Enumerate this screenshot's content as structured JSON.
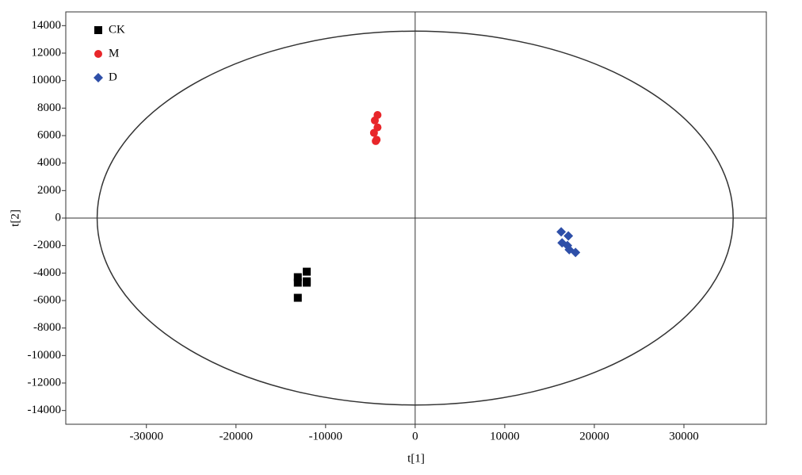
{
  "chart_data": {
    "type": "scatter",
    "xlabel": "t[1]",
    "ylabel": "t[2]",
    "xlim": [
      -39000,
      39200
    ],
    "ylim": [
      -15000,
      15000
    ],
    "xticks": [
      -30000,
      -20000,
      -10000,
      0,
      10000,
      20000,
      30000
    ],
    "yticks": [
      -14000,
      -12000,
      -10000,
      -8000,
      -6000,
      -4000,
      -2000,
      0,
      2000,
      4000,
      6000,
      8000,
      10000,
      12000,
      14000
    ],
    "ellipse": {
      "rx": 35500,
      "ry": 13600
    },
    "legend": "upper left",
    "series": [
      {
        "name": "CK",
        "color": "#000000",
        "marker": "square",
        "x": [
          -12100,
          -13100,
          -12100,
          -13100,
          -12100,
          -13100
        ],
        "values": [
          -3900,
          -4300,
          -4600,
          -4700,
          -4700,
          -5800
        ]
      },
      {
        "name": "M",
        "color": "#e8262a",
        "marker": "circle",
        "x": [
          -4200,
          -4500,
          -4200,
          -4600,
          -4300,
          -4400
        ],
        "values": [
          7500,
          7100,
          6600,
          6200,
          5700,
          5600
        ]
      },
      {
        "name": "D",
        "color": "#2e4fa8",
        "marker": "diamond",
        "x": [
          16300,
          17100,
          16400,
          17000,
          17200,
          17900
        ],
        "values": [
          -1000,
          -1300,
          -1800,
          -2000,
          -2300,
          -2500
        ]
      }
    ]
  }
}
